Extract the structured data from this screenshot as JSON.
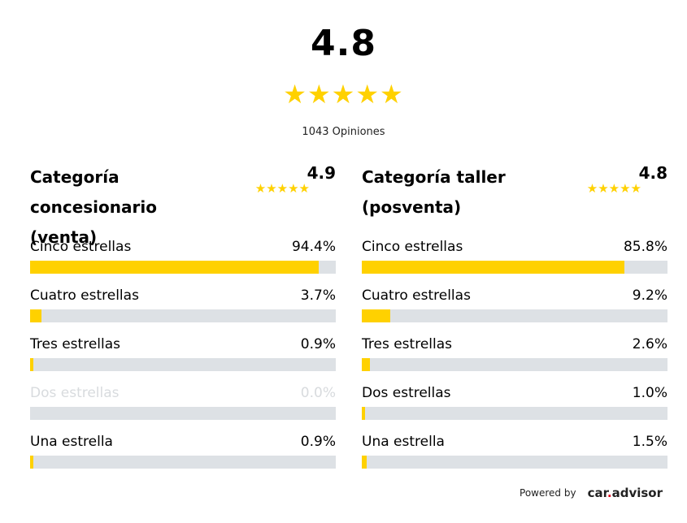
{
  "overall": {
    "score": "4.8",
    "stars": "★★★★★",
    "rating": 4.8,
    "reviews": "1043 Opiniones"
  },
  "colors": {
    "star": "#ffd100",
    "bar_fill": "#ffd100",
    "bar_track": "#dde1e5"
  },
  "categories": [
    {
      "title_line1": "Categoría concesionario",
      "title_line2": "(venta)",
      "score": "4.9",
      "stars": "★★★★★",
      "rows": [
        {
          "label": "Cinco estrellas",
          "percent": "94.4%",
          "value": 94.4
        },
        {
          "label": "Cuatro estrellas",
          "percent": "3.7%",
          "value": 3.7
        },
        {
          "label": "Tres estrellas",
          "percent": "0.9%",
          "value": 0.9
        },
        {
          "label": "Dos estrellas",
          "percent": "0.0%",
          "value": 0.0
        },
        {
          "label": "Una estrella",
          "percent": "0.9%",
          "value": 0.9
        }
      ]
    },
    {
      "title_line1": "Categoría taller",
      "title_line2": "(posventa)",
      "score": "4.8",
      "stars": "★★★★★",
      "rows": [
        {
          "label": "Cinco estrellas",
          "percent": "85.8%",
          "value": 85.8
        },
        {
          "label": "Cuatro estrellas",
          "percent": "9.2%",
          "value": 9.2
        },
        {
          "label": "Tres estrellas",
          "percent": "2.6%",
          "value": 2.6
        },
        {
          "label": "Dos estrellas",
          "percent": "1.0%",
          "value": 1.0
        },
        {
          "label": "Una estrella",
          "percent": "1.5%",
          "value": 1.5
        }
      ]
    }
  ],
  "footer": {
    "powered_by": "Powered by",
    "logo_part1": "car",
    "logo_dot": ".",
    "logo_part2": "advisor"
  }
}
